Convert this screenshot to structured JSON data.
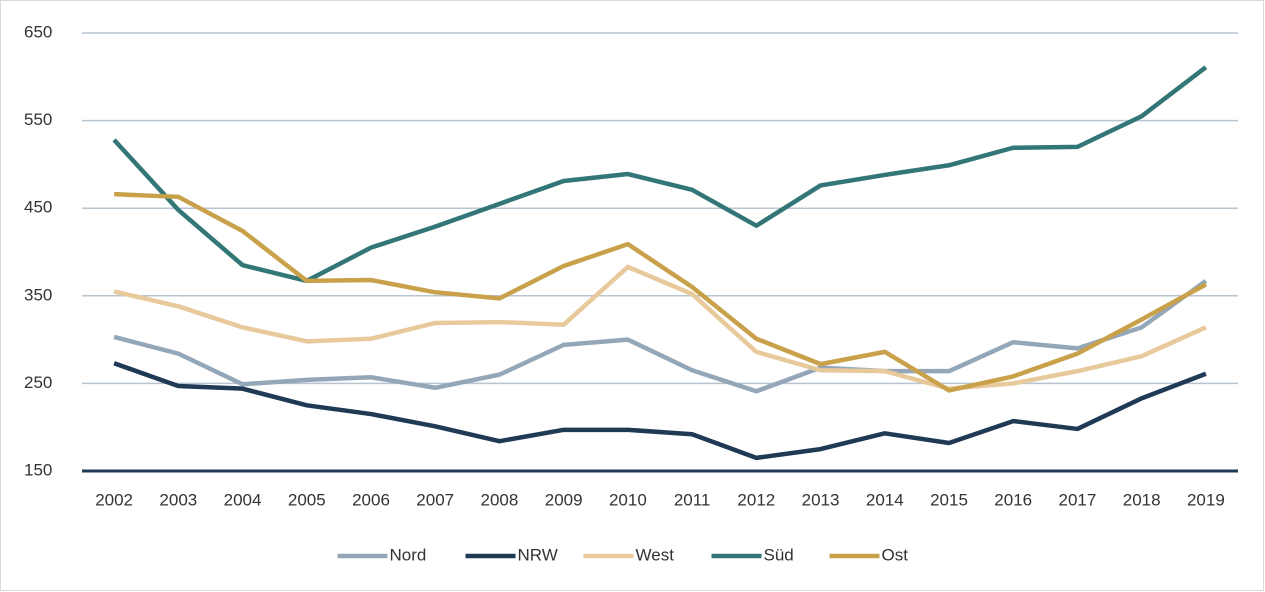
{
  "chart_data": {
    "type": "line",
    "x": [
      "2002",
      "2003",
      "2004",
      "2005",
      "2006",
      "2007",
      "2008",
      "2009",
      "2010",
      "2011",
      "2012",
      "2013",
      "2014",
      "2015",
      "2016",
      "2017",
      "2018",
      "2019"
    ],
    "series": [
      {
        "name": "Nord",
        "color": "#94a7b8",
        "values": [
          303,
          284,
          249,
          254,
          257,
          245,
          260,
          294,
          300,
          265,
          241,
          268,
          264,
          264,
          297,
          290,
          314,
          367
        ]
      },
      {
        "name": "NRW",
        "color": "#203a55",
        "values": [
          273,
          247,
          244,
          225,
          215,
          201,
          184,
          197,
          197,
          192,
          165,
          175,
          193,
          182,
          207,
          198,
          233,
          261
        ]
      },
      {
        "name": "West",
        "color": "#e8c99c",
        "values": [
          355,
          338,
          314,
          298,
          301,
          319,
          320,
          317,
          383,
          352,
          286,
          265,
          264,
          244,
          250,
          264,
          281,
          314
        ]
      },
      {
        "name": "Süd",
        "color": "#337677",
        "values": [
          528,
          448,
          385,
          367,
          405,
          429,
          455,
          481,
          489,
          471,
          430,
          476,
          488,
          499,
          519,
          520,
          555,
          611
        ]
      },
      {
        "name": "Ost",
        "color": "#c9a14a",
        "values": [
          466,
          463,
          424,
          367,
          368,
          354,
          347,
          384,
          409,
          360,
          301,
          272,
          286,
          242,
          258,
          284,
          323,
          363
        ]
      }
    ],
    "ylim": [
      150,
      650
    ],
    "yticks": [
      150,
      250,
      350,
      450,
      550,
      650
    ],
    "grid": true,
    "legend": "bottom"
  }
}
